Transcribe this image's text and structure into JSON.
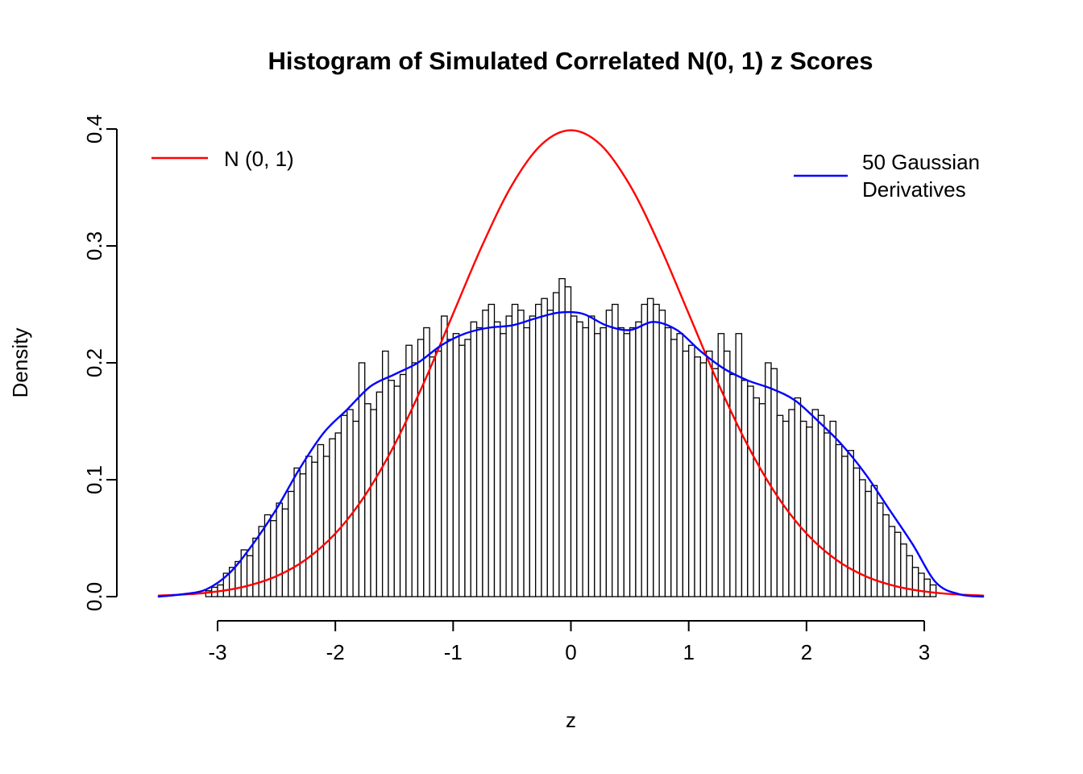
{
  "title": "Histogram of Simulated Correlated N(0, 1) z Scores",
  "chart_data": {
    "type": "histogram",
    "title": "Histogram of Simulated Correlated N(0, 1) z Scores",
    "xlabel": "z",
    "ylabel": "Density",
    "xlim": [
      -3.6,
      3.6
    ],
    "ylim": [
      0.0,
      0.4
    ],
    "grid": false,
    "x_tick_values": [
      -3,
      -2,
      -1,
      0,
      1,
      2,
      3
    ],
    "x_tick_labels": [
      "-3",
      "-2",
      "-1",
      "0",
      "1",
      "2",
      "3"
    ],
    "y_tick_values": [
      0.0,
      0.1,
      0.2,
      0.3,
      0.4
    ],
    "y_tick_labels": [
      "0.0",
      "0.1",
      "0.2",
      "0.3",
      "0.4"
    ],
    "histogram": {
      "bin_start": -3.1,
      "bin_width": 0.05,
      "fill": "#ffffff",
      "stroke": "#000000",
      "heights": [
        0.005,
        0.008,
        0.01,
        0.02,
        0.025,
        0.03,
        0.04,
        0.035,
        0.05,
        0.06,
        0.07,
        0.065,
        0.08,
        0.075,
        0.09,
        0.11,
        0.105,
        0.12,
        0.115,
        0.13,
        0.12,
        0.135,
        0.14,
        0.155,
        0.16,
        0.15,
        0.2,
        0.165,
        0.16,
        0.175,
        0.21,
        0.185,
        0.18,
        0.19,
        0.215,
        0.2,
        0.22,
        0.23,
        0.205,
        0.21,
        0.24,
        0.22,
        0.225,
        0.215,
        0.22,
        0.235,
        0.23,
        0.245,
        0.25,
        0.235,
        0.225,
        0.24,
        0.25,
        0.245,
        0.23,
        0.24,
        0.25,
        0.255,
        0.245,
        0.26,
        0.272,
        0.265,
        0.24,
        0.235,
        0.23,
        0.24,
        0.225,
        0.23,
        0.245,
        0.25,
        0.23,
        0.225,
        0.23,
        0.235,
        0.25,
        0.255,
        0.25,
        0.245,
        0.23,
        0.22,
        0.225,
        0.21,
        0.215,
        0.205,
        0.2,
        0.21,
        0.195,
        0.225,
        0.21,
        0.19,
        0.225,
        0.185,
        0.18,
        0.17,
        0.165,
        0.2,
        0.195,
        0.155,
        0.15,
        0.16,
        0.17,
        0.15,
        0.145,
        0.16,
        0.155,
        0.14,
        0.15,
        0.13,
        0.12,
        0.125,
        0.11,
        0.1,
        0.09,
        0.095,
        0.08,
        0.07,
        0.06,
        0.055,
        0.045,
        0.035,
        0.025,
        0.02,
        0.015,
        0.01
      ]
    },
    "curves": [
      {
        "name": "N (0, 1)",
        "color": "#ff0000",
        "x": [
          -3.5,
          -3.25,
          -3.0,
          -2.75,
          -2.5,
          -2.25,
          -2.0,
          -1.75,
          -1.5,
          -1.25,
          -1.0,
          -0.75,
          -0.5,
          -0.25,
          0.0,
          0.25,
          0.5,
          0.75,
          1.0,
          1.25,
          1.5,
          1.75,
          2.0,
          2.25,
          2.5,
          2.75,
          3.0,
          3.25,
          3.5
        ],
        "y": [
          0.0009,
          0.002,
          0.0044,
          0.0091,
          0.0175,
          0.0317,
          0.054,
          0.0863,
          0.1295,
          0.1826,
          0.242,
          0.3011,
          0.3521,
          0.3867,
          0.3989,
          0.3867,
          0.3521,
          0.3011,
          0.242,
          0.1826,
          0.1295,
          0.0863,
          0.054,
          0.0317,
          0.0175,
          0.0091,
          0.0044,
          0.002,
          0.0009
        ]
      },
      {
        "name": "50 Gaussian Derivatives",
        "color": "#0000ff",
        "x": [
          -3.5,
          -3.3,
          -3.1,
          -2.9,
          -2.7,
          -2.5,
          -2.3,
          -2.1,
          -1.9,
          -1.7,
          -1.5,
          -1.3,
          -1.1,
          -0.9,
          -0.7,
          -0.5,
          -0.3,
          -0.1,
          0.1,
          0.3,
          0.5,
          0.7,
          0.9,
          1.1,
          1.3,
          1.5,
          1.7,
          1.9,
          2.1,
          2.3,
          2.5,
          2.7,
          2.9,
          3.1,
          3.3,
          3.5
        ],
        "y": [
          0.0,
          0.002,
          0.006,
          0.02,
          0.045,
          0.075,
          0.11,
          0.14,
          0.16,
          0.18,
          0.19,
          0.2,
          0.215,
          0.225,
          0.23,
          0.232,
          0.238,
          0.243,
          0.242,
          0.232,
          0.228,
          0.235,
          0.228,
          0.21,
          0.195,
          0.185,
          0.178,
          0.168,
          0.15,
          0.13,
          0.105,
          0.075,
          0.045,
          0.012,
          0.002,
          0.0
        ]
      }
    ],
    "legend": [
      {
        "label_lines": [
          "N (0, 1)"
        ],
        "color": "#ff0000",
        "position": "top-left"
      },
      {
        "label_lines": [
          "50 Gaussian",
          "Derivatives"
        ],
        "color": "#0000ff",
        "position": "top-right"
      }
    ]
  }
}
